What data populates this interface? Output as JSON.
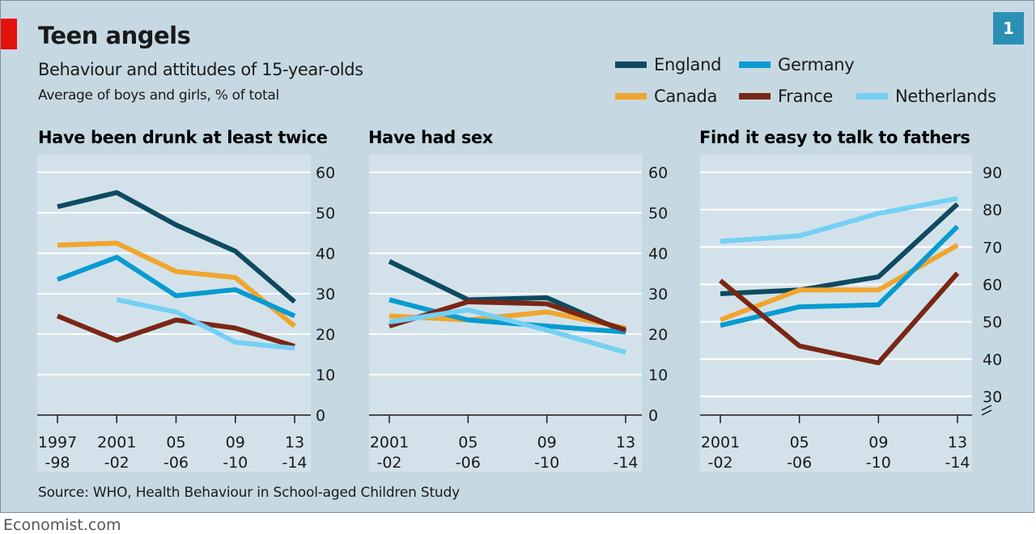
{
  "title": "Teen angels",
  "subtitle": "Behaviour and attitudes of 15-year-olds",
  "unit_note": "Average of boys and girls, % of total",
  "chart_number": "1",
  "source": "Source: WHO, Health Behaviour in School-aged Children Study",
  "brand": "Economist.com",
  "colors": {
    "background": "#c6d9e3",
    "plot_background": "#d3e2ea",
    "gridline": "#ffffff",
    "accent_red": "#e3120b",
    "badge": "#2c8fb4"
  },
  "legend": [
    {
      "name": "England",
      "color": "#0e4a61"
    },
    {
      "name": "Germany",
      "color": "#079bd1"
    },
    {
      "name": "Canada",
      "color": "#f0a52e"
    },
    {
      "name": "France",
      "color": "#7a2616"
    },
    {
      "name": "Netherlands",
      "color": "#74d0f4"
    }
  ],
  "chart_data": [
    {
      "type": "line",
      "title": "Have been drunk at least twice",
      "categories": [
        "1997-98",
        "2001-02",
        "2005-06",
        "2009-10",
        "2013-14"
      ],
      "x_tick_labels": [
        [
          "1997",
          "-98"
        ],
        [
          "2001",
          "-02"
        ],
        [
          "05",
          "-06"
        ],
        [
          "09",
          "-10"
        ],
        [
          "13",
          "-14"
        ]
      ],
      "ylim": [
        0,
        60
      ],
      "yticks": [
        0,
        10,
        20,
        30,
        40,
        50,
        60
      ],
      "grid": true,
      "series": [
        {
          "name": "England",
          "color": "#0e4a61",
          "values": [
            51.5,
            55,
            47,
            40.5,
            28
          ]
        },
        {
          "name": "Canada",
          "color": "#f0a52e",
          "values": [
            42,
            42.5,
            35.5,
            34,
            22
          ]
        },
        {
          "name": "Germany",
          "color": "#079bd1",
          "values": [
            33.5,
            39,
            29.5,
            31,
            24.5
          ]
        },
        {
          "name": "France",
          "color": "#7a2616",
          "values": [
            24.5,
            18.5,
            23.5,
            21.5,
            17
          ]
        },
        {
          "name": "Netherlands",
          "color": "#74d0f4",
          "values": [
            null,
            28.5,
            25.5,
            18,
            16.5
          ]
        }
      ]
    },
    {
      "type": "line",
      "title": "Have had sex",
      "categories": [
        "2001-02",
        "2005-06",
        "2009-10",
        "2013-14"
      ],
      "x_tick_labels": [
        [
          "2001",
          "-02"
        ],
        [
          "05",
          "-06"
        ],
        [
          "09",
          "-10"
        ],
        [
          "13",
          "-14"
        ]
      ],
      "ylim": [
        0,
        60
      ],
      "yticks": [
        0,
        10,
        20,
        30,
        40,
        50,
        60
      ],
      "grid": true,
      "series": [
        {
          "name": "England",
          "color": "#0e4a61",
          "values": [
            38,
            28.5,
            29,
            20.5
          ]
        },
        {
          "name": "Canada",
          "color": "#f0a52e",
          "values": [
            24.5,
            23.5,
            25.5,
            21.5
          ]
        },
        {
          "name": "Germany",
          "color": "#079bd1",
          "values": [
            28.5,
            23.5,
            22,
            20.5
          ]
        },
        {
          "name": "France",
          "color": "#7a2616",
          "values": [
            22,
            28,
            27.5,
            21
          ]
        },
        {
          "name": "Netherlands",
          "color": "#74d0f4",
          "values": [
            23,
            26,
            21,
            15.5
          ]
        }
      ]
    },
    {
      "type": "line",
      "title": "Find it easy to talk to fathers",
      "categories": [
        "2001-02",
        "2005-06",
        "2009-10",
        "2013-14"
      ],
      "x_tick_labels": [
        [
          "2001",
          "-02"
        ],
        [
          "05",
          "-06"
        ],
        [
          "09",
          "-10"
        ],
        [
          "13",
          "-14"
        ]
      ],
      "ylim": [
        25,
        90
      ],
      "yticks": [
        30,
        40,
        50,
        60,
        70,
        80,
        90
      ],
      "axis_break": true,
      "grid": true,
      "series": [
        {
          "name": "Netherlands",
          "color": "#74d0f4",
          "values": [
            71.5,
            73,
            79,
            83
          ]
        },
        {
          "name": "England",
          "color": "#0e4a61",
          "values": [
            57.5,
            58.5,
            62,
            81.5
          ]
        },
        {
          "name": "Canada",
          "color": "#f0a52e",
          "values": [
            50.5,
            58.5,
            58.5,
            70.5
          ]
        },
        {
          "name": "Germany",
          "color": "#079bd1",
          "values": [
            49,
            54,
            54.5,
            75.5
          ]
        },
        {
          "name": "France",
          "color": "#7a2616",
          "values": [
            61,
            43.5,
            39,
            63
          ]
        }
      ]
    }
  ]
}
